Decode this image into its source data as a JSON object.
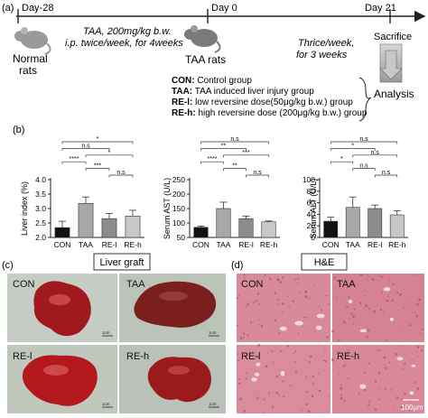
{
  "panel_labels": {
    "a": "(a)",
    "b": "(b)",
    "c": "(c)",
    "d": "(d)"
  },
  "timeline": {
    "days": [
      "Day-28",
      "Day 0",
      "Day 21"
    ],
    "treatment_line1": "TAA, 200mg/kg b.w.",
    "treatment_line2": "i.p. twice/week, for 4weeks",
    "normal_label_1": "Normal",
    "normal_label_2": "rats",
    "taa_label": "TAA rats",
    "dose_line1": "Thrice/week,",
    "dose_line2": "for 3 weeks",
    "sacrifice": "Sacrifice",
    "analysis": "Analysis"
  },
  "groups_legend": [
    {
      "code": "CON:",
      "desc": " Control group"
    },
    {
      "code": "TAA:",
      "desc": " TAA induced liver injury group"
    },
    {
      "code": "RE-l:",
      "desc": " low reversine dose(50μg/kg b.w.) group"
    },
    {
      "code": "RE-h:",
      "desc": " high reversine dose (200μg/kg b.w.) group"
    }
  ],
  "chart_data": [
    {
      "type": "bar",
      "categories": [
        "CON",
        "TAA",
        "RE-l",
        "RE-h"
      ],
      "values": [
        2.34,
        3.18,
        2.65,
        2.74
      ],
      "errors": [
        0.22,
        0.22,
        0.18,
        0.2
      ],
      "ylabel": "Liver index (%)",
      "ylim": [
        2.0,
        4.0
      ],
      "yticks": [
        "2.0",
        "2.5",
        "3.0",
        "3.5",
        "4.0"
      ],
      "bar_colors": [
        "#111111",
        "#a8a8a8",
        "#8c8c8c",
        "#c8c8c8"
      ],
      "significance": [
        {
          "from": 0,
          "to": 3,
          "label": "*"
        },
        {
          "from": 0,
          "to": 2,
          "label": "n.s"
        },
        {
          "from": 1,
          "to": 3,
          "label": "*"
        },
        {
          "from": 0,
          "to": 1,
          "label": "****"
        },
        {
          "from": 1,
          "to": 2,
          "label": "***"
        },
        {
          "from": 2,
          "to": 3,
          "label": "n.s"
        }
      ]
    },
    {
      "type": "bar",
      "categories": [
        "CON",
        "TAA",
        "RE-l",
        "RE-h"
      ],
      "values": [
        85,
        150,
        115,
        104
      ],
      "errors": [
        4,
        22,
        9,
        3
      ],
      "ylabel": "Serum AST (U/L)",
      "ylim": [
        50,
        250
      ],
      "yticks": [
        "50",
        "100",
        "150",
        "200",
        "250"
      ],
      "bar_colors": [
        "#111111",
        "#a8a8a8",
        "#8c8c8c",
        "#c8c8c8"
      ],
      "significance": [
        {
          "from": 0,
          "to": 3,
          "label": "n.s"
        },
        {
          "from": 0,
          "to": 2,
          "label": "**"
        },
        {
          "from": 1,
          "to": 3,
          "label": "***"
        },
        {
          "from": 0,
          "to": 1,
          "label": "****"
        },
        {
          "from": 1,
          "to": 2,
          "label": "**"
        },
        {
          "from": 2,
          "to": 3,
          "label": "n.s"
        }
      ]
    },
    {
      "type": "bar",
      "categories": [
        "CON",
        "TAA",
        "RE-l",
        "RE-h"
      ],
      "values": [
        28,
        52,
        50,
        39
      ],
      "errors": [
        7,
        18,
        6,
        7
      ],
      "ylabel": "Serum ALT (U/L)",
      "ylim": [
        0,
        100
      ],
      "yticks": [
        "0",
        "20",
        "40",
        "60",
        "80",
        "100"
      ],
      "bar_colors": [
        "#111111",
        "#a8a8a8",
        "#8c8c8c",
        "#c8c8c8"
      ],
      "significance": [
        {
          "from": 0,
          "to": 3,
          "label": "n.s"
        },
        {
          "from": 0,
          "to": 2,
          "label": "*"
        },
        {
          "from": 1,
          "to": 3,
          "label": "n.s"
        },
        {
          "from": 0,
          "to": 1,
          "label": "*"
        },
        {
          "from": 1,
          "to": 2,
          "label": "n.s"
        },
        {
          "from": 2,
          "to": 3,
          "label": "n.s"
        }
      ]
    }
  ],
  "panel_c": {
    "title": "Liver graft",
    "labels": [
      "CON",
      "TAA",
      "RE-l",
      "RE-h"
    ],
    "scale": "1cm"
  },
  "panel_d": {
    "title": "H&E",
    "labels": [
      "CON",
      "TAA",
      "RE-l",
      "RE-h"
    ],
    "scale": "100μm"
  }
}
